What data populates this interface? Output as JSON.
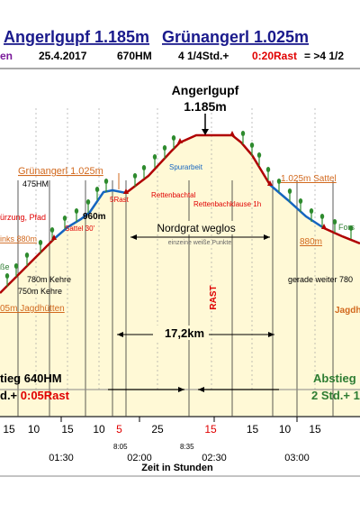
{
  "header": {
    "title_left": "Angerlgupf 1.185m",
    "title_right": "Grünangerl 1.025m",
    "sub_left_fragment": "en",
    "date": "25.4.2017",
    "hm": "670HM",
    "duration": "4 1/4Std.+",
    "rest": "0:20Rast",
    "total": "= >4 1/2"
  },
  "summit": {
    "name": "Angerlgupf",
    "height": "1.185m"
  },
  "labels": {
    "gruenangerl": "Grünangerl 1.025m",
    "hm475": "475HM",
    "abkuerzung": "ürzung, Pfad",
    "links880": "inks 880m",
    "sattel30": "Sattel 30'",
    "m960": "960m",
    "rast5": "5Rast",
    "rettenbachtal": "Rettenbachtal",
    "spurarbeit": "Spurarbeit",
    "rettenbachklause": "Rettenbachklause 1h",
    "sattel1025": "1.025m Sattel",
    "forst": "Fors",
    "m880right": "880m",
    "nordgrat": "Nordgrat weglos",
    "weisse_punkte": "einzeine weiße Punkte",
    "rast_vertical": "RAST",
    "wiese": "ße",
    "kehre1": "780m Kehre",
    "kehre2": "750m  Kehre",
    "jagdhuetten_left": "05m Jagdhütten",
    "gerade_weiter": "gerade weiter 780",
    "jagdh_right": "Jagdh",
    "distance": "17,2km",
    "aufstieg_hm": "tieg 640HM",
    "aufstieg_time": "d.+ ",
    "aufstieg_rest": "0:05Rast",
    "abstieg": "Abstieg",
    "abstieg_time": "2 Std.+ 1"
  },
  "time_axis": {
    "label": "Zeit in Stunden",
    "segments": [
      "15",
      "10",
      "15",
      "10",
      "5",
      "25",
      "15",
      "15",
      "10",
      "15"
    ],
    "red_segments": [
      4,
      6
    ],
    "times": [
      "01:30",
      "02:00",
      "02:30",
      "03:00"
    ],
    "small_times": [
      "8:05",
      "8:35"
    ]
  },
  "colors": {
    "title_blue": "#1a1a8c",
    "profile_red": "#b00000",
    "profile_blue": "#1565c0",
    "fill": "#fff9d6",
    "tree": "#2e8b2e",
    "orange": "#d2691e",
    "red_text": "#e00000",
    "green_text": "#2e7d32",
    "purple": "#7a1a9a"
  },
  "chart_data": {
    "type": "area",
    "xlabel": "Zeit in Stunden",
    "x_ticks": [
      "01:30",
      "02:00",
      "02:30",
      "03:00"
    ],
    "series": [
      {
        "x": [
          "01:00",
          "01:15",
          "01:25",
          "01:40",
          "01:50",
          "02:10",
          "02:20",
          "02:35",
          "02:50",
          "03:10",
          "03:30"
        ],
        "values": [
          780,
          880,
          960,
          1025,
          1025,
          1185,
          1185,
          1025,
          960,
          880,
          780
        ]
      }
    ]
  }
}
